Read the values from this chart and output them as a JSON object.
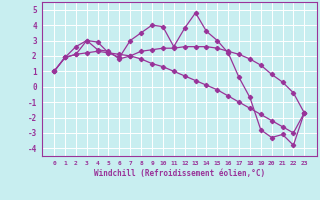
{
  "xlabel": "Windchill (Refroidissement éolien,°C)",
  "background_color": "#c8eef0",
  "line_color": "#993399",
  "x": [
    0,
    1,
    2,
    3,
    4,
    5,
    6,
    7,
    8,
    9,
    10,
    11,
    12,
    13,
    14,
    15,
    16,
    17,
    18,
    19,
    20,
    21,
    22,
    23
  ],
  "line1": [
    1.0,
    1.9,
    2.6,
    3.0,
    2.9,
    2.2,
    1.9,
    3.0,
    3.5,
    4.0,
    3.9,
    2.6,
    3.8,
    4.8,
    3.6,
    3.0,
    2.2,
    0.6,
    -0.7,
    -2.8,
    -3.3,
    -3.1,
    -3.8,
    -1.7
  ],
  "line2": [
    1.0,
    1.9,
    2.1,
    2.2,
    2.3,
    2.2,
    2.1,
    2.0,
    1.8,
    1.5,
    1.3,
    1.0,
    0.7,
    0.4,
    0.1,
    -0.2,
    -0.6,
    -1.0,
    -1.4,
    -1.8,
    -2.2,
    -2.6,
    -3.0,
    -1.7
  ],
  "line3": [
    1.0,
    1.9,
    2.1,
    3.0,
    2.4,
    2.3,
    1.8,
    2.0,
    2.3,
    2.4,
    2.5,
    2.5,
    2.6,
    2.6,
    2.6,
    2.5,
    2.3,
    2.1,
    1.8,
    1.4,
    0.8,
    0.3,
    -0.4,
    -1.7
  ],
  "ylim": [
    -4.5,
    5.5
  ],
  "yticks": [
    -4,
    -3,
    -2,
    -1,
    0,
    1,
    2,
    3,
    4,
    5
  ],
  "xticks": [
    0,
    1,
    2,
    3,
    4,
    5,
    6,
    7,
    8,
    9,
    10,
    11,
    12,
    13,
    14,
    15,
    16,
    17,
    18,
    19,
    20,
    21,
    22,
    23
  ]
}
